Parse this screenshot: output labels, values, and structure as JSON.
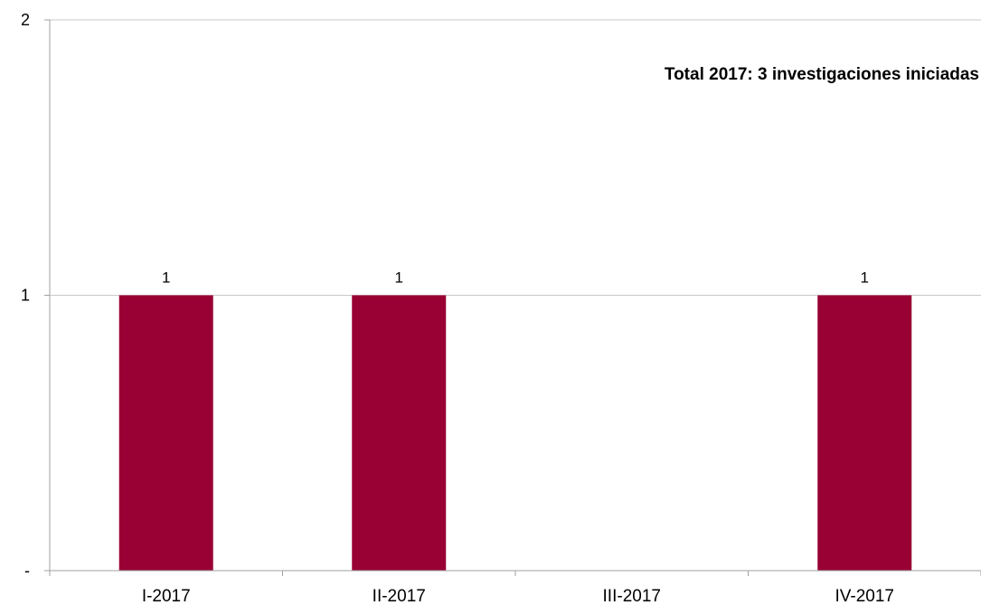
{
  "chart_data": {
    "type": "bar",
    "categories": [
      "I-2017",
      "II-2017",
      "III-2017",
      "IV-2017"
    ],
    "values": [
      1,
      1,
      0,
      1
    ],
    "data_labels": [
      "1",
      "1",
      "",
      "1"
    ],
    "y_tick_labels": [
      "-",
      "1",
      "2"
    ],
    "y_ticks": [
      0,
      1,
      2
    ],
    "ylim": [
      0,
      2
    ],
    "grid": true,
    "annotation": "Total 2017:  3 investigaciones iniciadas",
    "bar_color": "#990033",
    "grid_color": "#c8c8c8"
  }
}
